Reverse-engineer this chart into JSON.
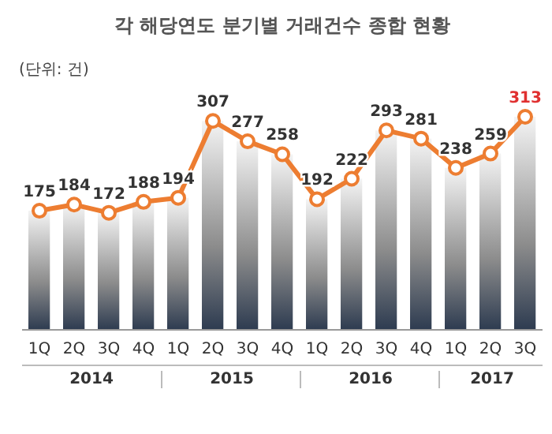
{
  "chart_data": {
    "type": "bar",
    "title": "각 해당연도 분기별 거래건수 종합 현황",
    "categories": [
      "1Q",
      "2Q",
      "3Q",
      "4Q",
      "1Q",
      "2Q",
      "3Q",
      "4Q",
      "1Q",
      "2Q",
      "3Q",
      "4Q",
      "1Q",
      "2Q",
      "3Q"
    ],
    "series": [
      {
        "color": "#8c8c8c",
        "values": [
          175,
          184,
          172,
          188,
          194,
          307,
          277,
          258,
          192,
          222,
          293,
          281,
          238,
          259,
          313
        ]
      },
      {
        "type": "line",
        "color": "#ed7d31",
        "values": [
          175,
          184,
          172,
          188,
          194,
          307,
          277,
          258,
          192,
          222,
          293,
          281,
          238,
          259,
          313
        ],
        "value_labels": [
          "175",
          "184",
          "172",
          "188",
          "194",
          "307",
          "277",
          "258",
          "192",
          "222",
          "293",
          "281",
          "238",
          "259",
          "313"
        ]
      }
    ],
    "marker": "circle",
    "grid": false,
    "legend": false,
    "annotations": [
      "(단위: 건)",
      "2014",
      "2015",
      "2016",
      "2017"
    ]
  }
}
